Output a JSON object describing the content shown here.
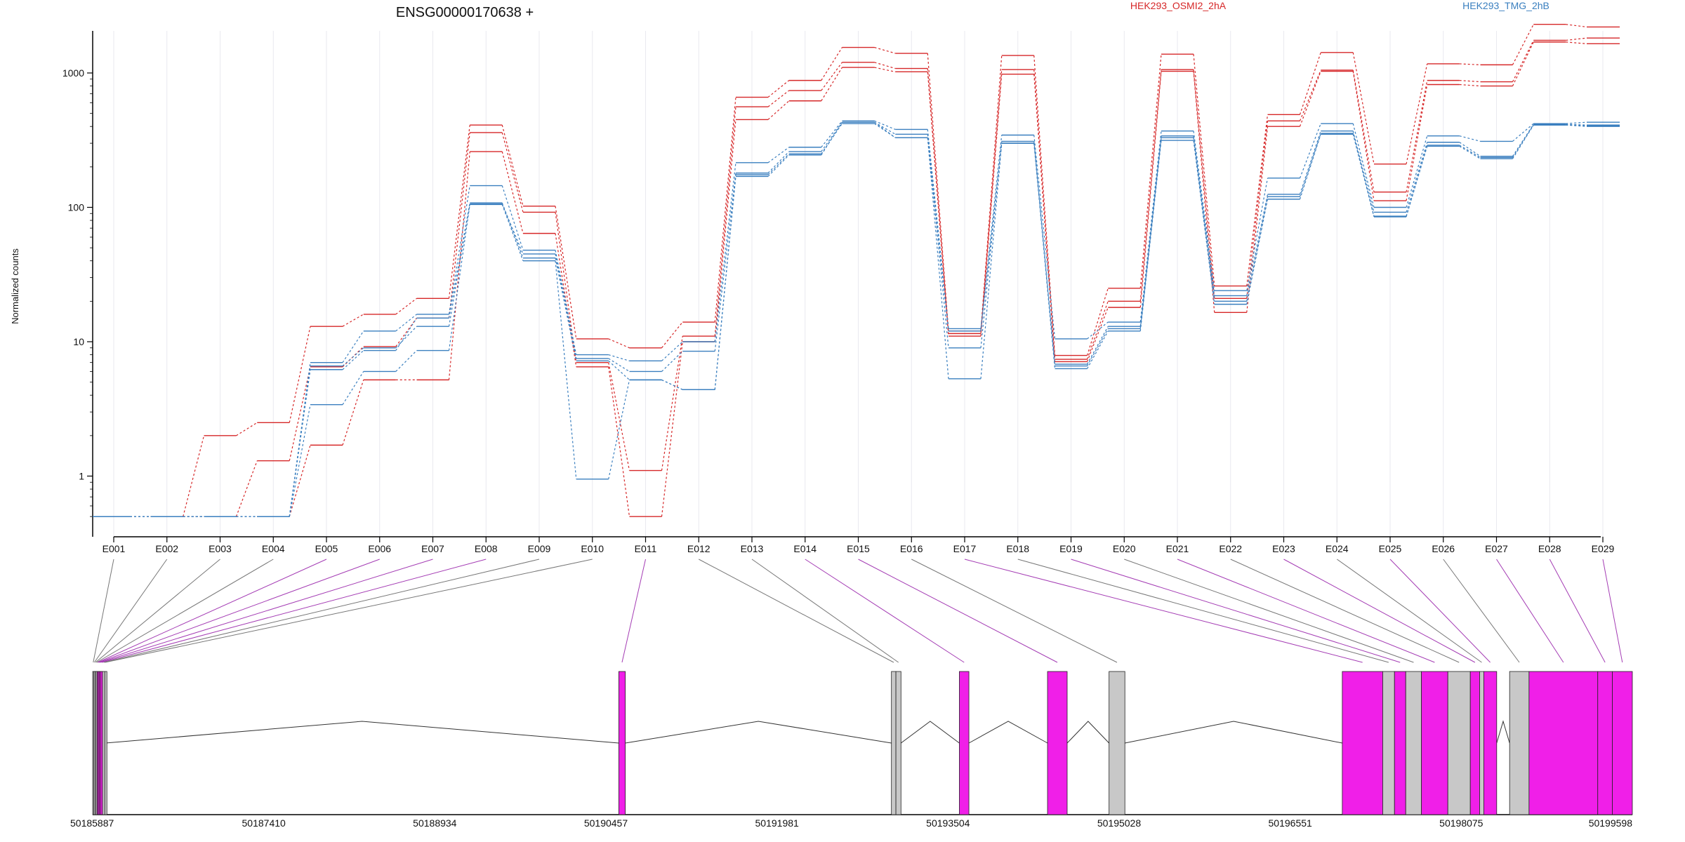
{
  "chart_data": {
    "type": "line",
    "title": "ENSG00000170638 +",
    "ylabel": "Normalized counts",
    "y_scale": "log",
    "ylim": [
      0.5,
      3000
    ],
    "y_ticks": [
      1,
      10,
      100,
      1000
    ],
    "y_tick_labels": [
      "1",
      "10",
      "100",
      "1000"
    ],
    "grid": true,
    "legend_placement": "top",
    "colors": {
      "HEK293_OSMI2_2hA": "#d62728",
      "HEK293_TMG_2hB": "#3a7fbf",
      "exon_highlight": "#f01fe8",
      "exon_plain": "#c8c8c8"
    },
    "categories": [
      "E001",
      "E002",
      "E003",
      "E004",
      "E005",
      "E006",
      "E007",
      "E008",
      "E009",
      "E010",
      "E011",
      "E012",
      "E013",
      "E014",
      "E015",
      "E016",
      "E017",
      "E018",
      "E019",
      "E020",
      "E021",
      "E022",
      "E023",
      "E024",
      "E025",
      "E026",
      "E027",
      "E028",
      "E029"
    ],
    "series": [
      {
        "name": "HEK293_OSMI2_2hA",
        "color": "#d62728",
        "values": [
          0.5,
          0.5,
          2.0,
          2.5,
          13,
          16,
          21,
          410,
          102,
          10.5,
          9.0,
          14,
          660,
          880,
          1550,
          1400,
          12,
          1350,
          7.9,
          25,
          1380,
          26,
          490,
          1420,
          210,
          1170,
          1150,
          2300,
          2200
        ]
      },
      {
        "name": "HEK293_OSMI2_2hA",
        "color": "#d62728",
        "values": [
          0.5,
          0.5,
          0.5,
          1.3,
          6.5,
          9.2,
          15,
          360,
          92,
          7.0,
          1.1,
          11,
          560,
          740,
          1200,
          1080,
          11.5,
          1060,
          7.4,
          20,
          1060,
          21,
          440,
          1050,
          130,
          880,
          860,
          1750,
          1820
        ]
      },
      {
        "name": "HEK293_OSMI2_2hA",
        "color": "#d62728",
        "values": [
          0.5,
          0.5,
          0.5,
          0.5,
          1.7,
          5.2,
          5.2,
          260,
          64,
          6.5,
          0.5,
          10,
          450,
          620,
          1100,
          1020,
          11,
          980,
          7.1,
          18,
          1030,
          16.5,
          400,
          1030,
          112,
          820,
          800,
          1700,
          1650
        ]
      },
      {
        "name": "HEK293_TMG_2hB",
        "color": "#3a7fbf",
        "values": [
          0.5,
          0.5,
          0.5,
          0.5,
          7.0,
          12,
          16,
          145,
          48,
          8.0,
          7.2,
          10,
          215,
          280,
          440,
          380,
          12.5,
          345,
          10.5,
          14,
          370,
          24,
          165,
          420,
          100,
          340,
          310,
          420,
          430
        ]
      },
      {
        "name": "HEK293_TMG_2hB",
        "color": "#3a7fbf",
        "values": [
          0.5,
          0.5,
          0.5,
          0.5,
          6.6,
          9.0,
          13,
          106,
          45,
          7.5,
          6.0,
          8.5,
          180,
          260,
          430,
          350,
          9.0,
          310,
          6.8,
          13,
          340,
          22,
          125,
          370,
          92,
          305,
          240,
          415,
          410
        ]
      },
      {
        "name": "HEK293_TMG_2hB",
        "color": "#3a7fbf",
        "values": [
          0.5,
          0.5,
          0.5,
          0.5,
          6.2,
          8.6,
          15,
          108,
          42,
          7.2,
          5.2,
          4.4,
          175,
          250,
          420,
          330,
          12,
          300,
          6.6,
          12.5,
          330,
          20,
          120,
          355,
          86,
          290,
          235,
          410,
          405
        ]
      },
      {
        "name": "HEK293_TMG_2hB",
        "color": "#3a7fbf",
        "values": [
          0.5,
          0.5,
          0.5,
          0.5,
          3.4,
          6.0,
          8.6,
          105,
          40,
          0.95,
          5.2,
          4.4,
          170,
          245,
          430,
          330,
          5.3,
          300,
          6.3,
          12,
          315,
          19,
          115,
          350,
          85,
          285,
          230,
          410,
          400
        ]
      }
    ],
    "gene_model": {
      "coordinate_labels": [
        "50185887",
        "50187410",
        "50188934",
        "50190457",
        "50191981",
        "50193504",
        "50195028",
        "50196551",
        "50198075",
        "50199598"
      ],
      "coord_min": 50185887,
      "coord_max": 50199598,
      "exons": [
        {
          "id": "E001",
          "start": 50185887,
          "end": 50185897,
          "highlighted": false
        },
        {
          "id": "E002",
          "start": 50185897,
          "end": 50185907,
          "highlighted": false
        },
        {
          "id": "E003",
          "start": 50185907,
          "end": 50185917,
          "highlighted": false
        },
        {
          "id": "E004",
          "start": 50185917,
          "end": 50185927,
          "highlighted": false
        },
        {
          "id": "E005",
          "start": 50185927,
          "end": 50185937,
          "highlighted": true
        },
        {
          "id": "E006",
          "start": 50185937,
          "end": 50185947,
          "highlighted": true
        },
        {
          "id": "E007",
          "start": 50185947,
          "end": 50185960,
          "highlighted": true
        },
        {
          "id": "E008",
          "start": 50185960,
          "end": 50185975,
          "highlighted": true
        },
        {
          "id": "E009",
          "start": 50185975,
          "end": 50185995,
          "highlighted": false
        },
        {
          "id": "E010",
          "start": 50185995,
          "end": 50186000,
          "highlighted": false
        },
        {
          "id": "E011",
          "start": 50190572,
          "end": 50190630,
          "highlighted": true
        },
        {
          "id": "E012",
          "start": 50193000,
          "end": 50193040,
          "highlighted": false
        },
        {
          "id": "E013",
          "start": 50193040,
          "end": 50193085,
          "highlighted": false
        },
        {
          "id": "E014",
          "start": 50193605,
          "end": 50193690,
          "highlighted": true
        },
        {
          "id": "E015",
          "start": 50194390,
          "end": 50194565,
          "highlighted": true
        },
        {
          "id": "E016",
          "start": 50194938,
          "end": 50195079,
          "highlighted": false
        },
        {
          "id": "E017",
          "start": 50197015,
          "end": 50197375,
          "highlighted": true
        },
        {
          "id": "E018",
          "start": 50197375,
          "end": 50197480,
          "highlighted": false
        },
        {
          "id": "E019",
          "start": 50197480,
          "end": 50197580,
          "highlighted": true
        },
        {
          "id": "E020",
          "start": 50197580,
          "end": 50197720,
          "highlighted": false
        },
        {
          "id": "E021",
          "start": 50197720,
          "end": 50197955,
          "highlighted": true
        },
        {
          "id": "E022",
          "start": 50197955,
          "end": 50198155,
          "highlighted": false
        },
        {
          "id": "E023",
          "start": 50198155,
          "end": 50198238,
          "highlighted": true
        },
        {
          "id": "E024",
          "start": 50198238,
          "end": 50198275,
          "highlighted": false
        },
        {
          "id": "E025",
          "start": 50198275,
          "end": 50198390,
          "highlighted": true
        },
        {
          "id": "E026",
          "start": 50198505,
          "end": 50198678,
          "highlighted": false
        },
        {
          "id": "E027",
          "start": 50198678,
          "end": 50199290,
          "highlighted": true
        },
        {
          "id": "E028",
          "start": 50199290,
          "end": 50199420,
          "highlighted": true
        },
        {
          "id": "E029",
          "start": 50199420,
          "end": 50199598,
          "highlighted": true
        }
      ]
    }
  }
}
